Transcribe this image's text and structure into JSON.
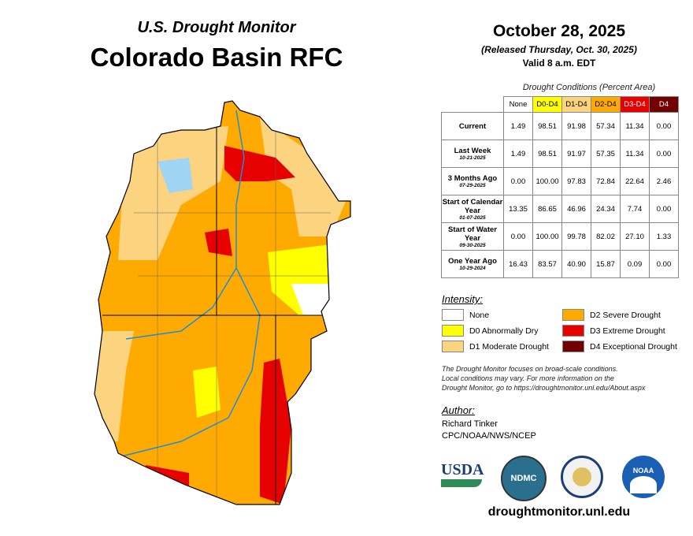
{
  "header": {
    "subtitle": "U.S. Drought Monitor",
    "title": "Colorado Basin RFC"
  },
  "info": {
    "date": "October 28, 2025",
    "released": "(Released Thursday, Oct. 30, 2025)",
    "valid": "Valid 8 a.m. EDT"
  },
  "table": {
    "caption": "Drought Conditions (Percent Area)",
    "columns": [
      "None",
      "D0-D4",
      "D1-D4",
      "D2-D4",
      "D3-D4",
      "D4"
    ],
    "rows": [
      {
        "label": "Current",
        "date": "",
        "values": [
          "1.49",
          "98.51",
          "91.98",
          "57.34",
          "11.34",
          "0.00"
        ]
      },
      {
        "label": "Last Week",
        "date": "10-21-2025",
        "values": [
          "1.49",
          "98.51",
          "91.97",
          "57.35",
          "11.34",
          "0.00"
        ]
      },
      {
        "label": "3 Months Ago",
        "date": "07-29-2025",
        "values": [
          "0.00",
          "100.00",
          "97.83",
          "72.84",
          "22.64",
          "2.46"
        ]
      },
      {
        "label": "Start of Calendar Year",
        "date": "01-07-2025",
        "values": [
          "13.35",
          "86.65",
          "46.96",
          "24.34",
          "7.74",
          "0.00"
        ]
      },
      {
        "label": "Start of Water Year",
        "date": "09-30-2025",
        "values": [
          "0.00",
          "100.00",
          "99.78",
          "82.02",
          "27.10",
          "1.33"
        ]
      },
      {
        "label": "One Year Ago",
        "date": "10-29-2024",
        "values": [
          "16.43",
          "83.57",
          "40.90",
          "15.87",
          "0.09",
          "0.00"
        ]
      }
    ]
  },
  "legend": {
    "title": "Intensity:",
    "items": [
      {
        "label": "None",
        "color": "#FFFFFF"
      },
      {
        "label": "D0 Abnormally Dry",
        "color": "#FFFF00"
      },
      {
        "label": "D1 Moderate Drought",
        "color": "#FCD37F"
      },
      {
        "label": "D2 Severe Drought",
        "color": "#FFAA00"
      },
      {
        "label": "D3 Extreme Drought",
        "color": "#E60000"
      },
      {
        "label": "D4 Exceptional Drought",
        "color": "#730000"
      }
    ]
  },
  "note": [
    "The Drought Monitor focuses on broad-scale conditions.",
    "Local conditions may vary. For more information on the",
    "Drought Monitor, go to https://droughtmonitor.unl.edu/About.aspx"
  ],
  "author": {
    "label": "Author:",
    "name": "Richard Tinker",
    "org": "CPC/NOAA/NWS/NCEP"
  },
  "logos": {
    "usda": "USDA",
    "ndmc": "NDMC",
    "noaa": "NOAA"
  },
  "url": "droughtmonitor.unl.edu"
}
